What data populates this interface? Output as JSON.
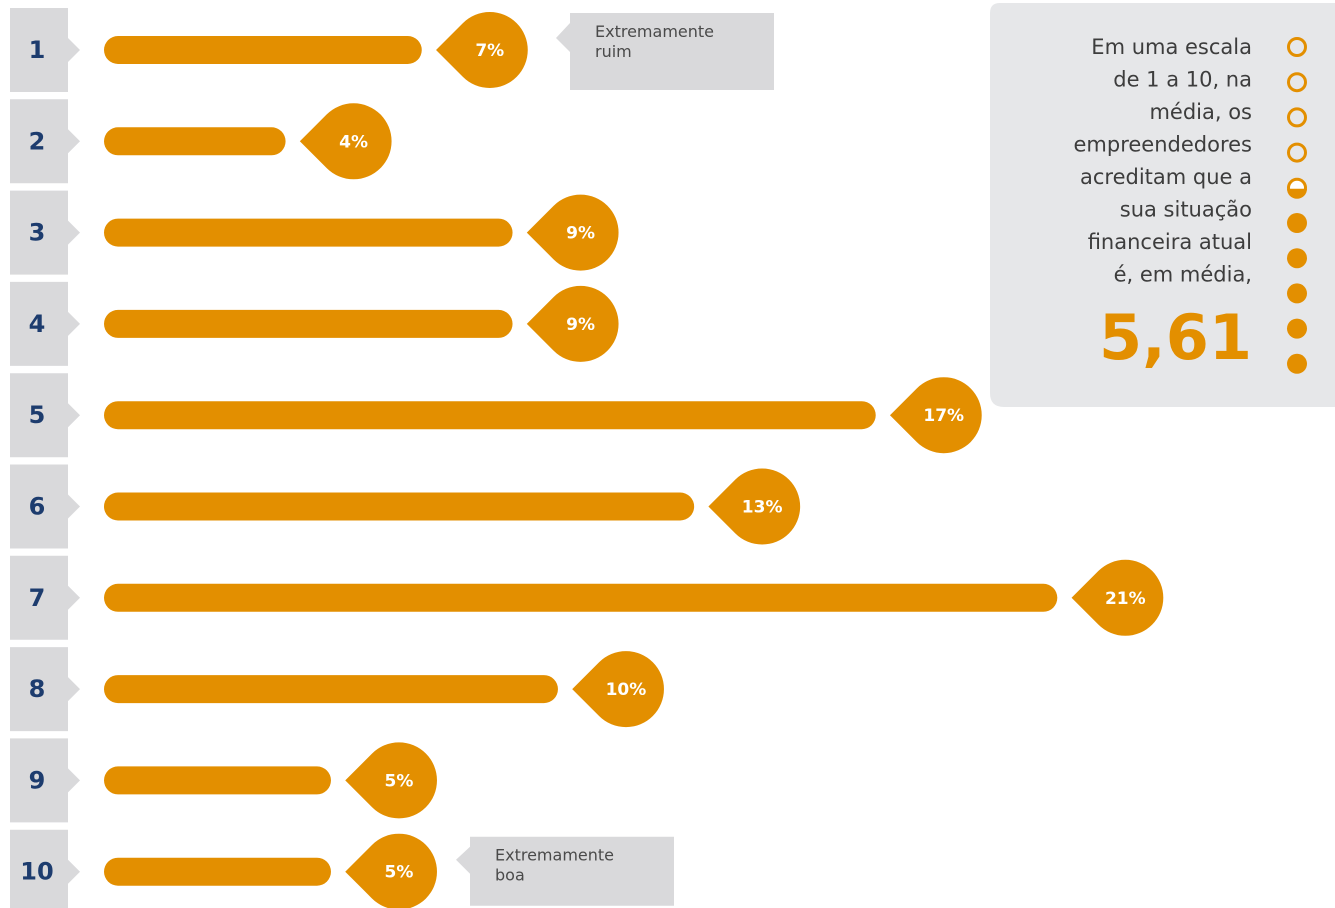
{
  "chart_data": {
    "type": "bar",
    "categories": [
      "1",
      "2",
      "3",
      "4",
      "5",
      "6",
      "7",
      "8",
      "9",
      "10"
    ],
    "values": [
      7,
      4,
      9,
      9,
      17,
      13,
      21,
      10,
      5,
      5
    ],
    "value_labels": [
      "7%",
      "4%",
      "9%",
      "9%",
      "17%",
      "13%",
      "21%",
      "10%",
      "5%",
      "5%"
    ],
    "color": "#e38f00",
    "xlim": [
      0,
      21.5
    ],
    "annotations": [
      {
        "category": 0,
        "text": [
          "Extremamente",
          "ruim"
        ]
      },
      {
        "category": 9,
        "text": [
          "Extremamente",
          "boa"
        ]
      }
    ],
    "callout": {
      "lines": [
        "Em uma escala",
        "de 1 a 10, na",
        "média, os",
        "empreendedores",
        "acreditam que a",
        "sua situação",
        "financeira atual",
        "é, em média,"
      ],
      "value_label": "5,61"
    }
  }
}
